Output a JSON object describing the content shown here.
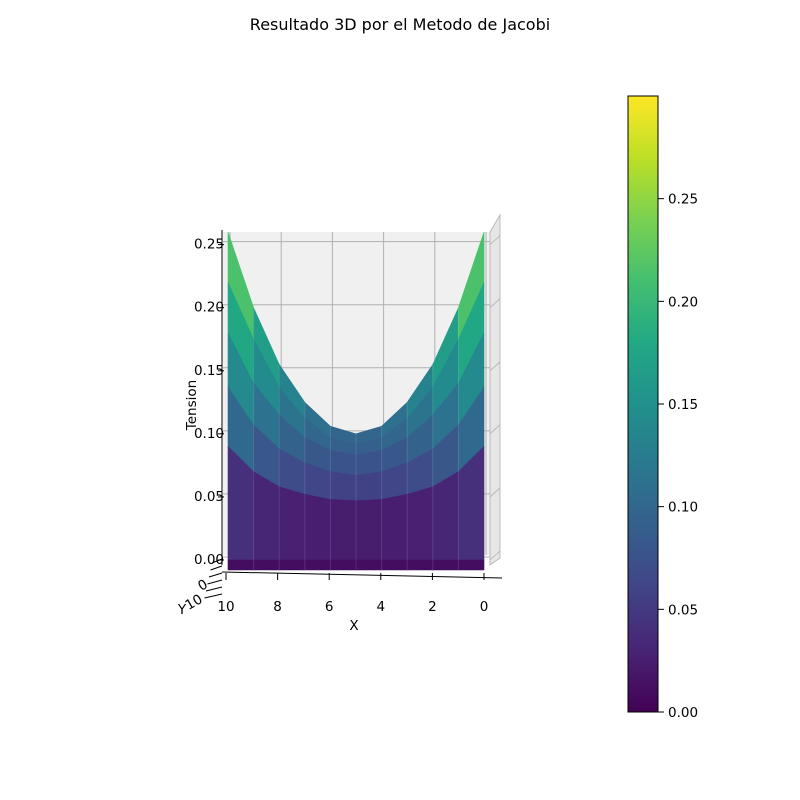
{
  "chart_data": {
    "type": "surface3d",
    "title": "Resultado 3D por el Metodo de Jacobi",
    "xlabel": "X",
    "ylabel": "Y",
    "zlabel": "Tension",
    "x_ticks": [
      "10",
      "8",
      "6",
      "4",
      "2",
      "0"
    ],
    "y_ticks_visible": [
      "10",
      "0"
    ],
    "z_ticks": [
      "0.00",
      "0.05",
      "0.10",
      "0.15",
      "0.20",
      "0.25"
    ],
    "colorbar_ticks": [
      "0.00",
      "0.05",
      "0.10",
      "0.15",
      "0.20",
      "0.25"
    ],
    "colormap": "viridis",
    "colorbar_range": [
      0,
      0.3
    ],
    "zlim": [
      0,
      0.26
    ],
    "x": [
      10,
      9,
      8,
      7,
      6,
      5,
      4,
      3,
      2,
      1,
      0
    ],
    "front_levels": [
      0.0,
      0.055,
      0.095,
      0.145,
      0.185,
      0.22
    ],
    "surface_rows": [
      [
        0.26,
        0.2,
        0.155,
        0.125,
        0.106,
        0.1,
        0.106,
        0.125,
        0.155,
        0.2,
        0.26
      ],
      [
        0.22,
        0.175,
        0.137,
        0.112,
        0.097,
        0.092,
        0.097,
        0.112,
        0.137,
        0.175,
        0.22
      ],
      [
        0.18,
        0.14,
        0.115,
        0.097,
        0.087,
        0.083,
        0.087,
        0.097,
        0.115,
        0.14,
        0.18
      ],
      [
        0.137,
        0.107,
        0.088,
        0.077,
        0.07,
        0.067,
        0.07,
        0.077,
        0.088,
        0.107,
        0.137
      ],
      [
        0.09,
        0.07,
        0.058,
        0.052,
        0.048,
        0.047,
        0.048,
        0.052,
        0.058,
        0.07,
        0.09
      ],
      [
        0.0,
        0.0,
        0.0,
        0.0,
        0.0,
        0.0,
        0.0,
        0.0,
        0.0,
        0.0,
        0.0
      ]
    ],
    "front_row": [
      0.0,
      0.0,
      0.0,
      0.0,
      0.0,
      0.0,
      0.0,
      0.0,
      0.0,
      0.0,
      0.0
    ]
  }
}
